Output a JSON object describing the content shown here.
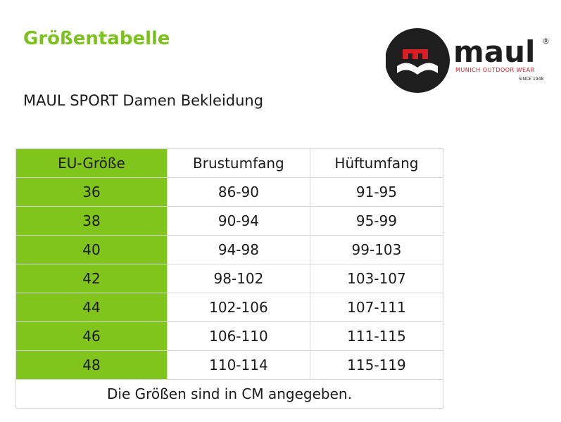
{
  "title": "Größentabelle",
  "subtitle": "MAUL SPORT Damen Bekleidung",
  "logo": {
    "wordmark": "maul",
    "registered": "®",
    "tagline": "MUNICH OUTDOOR WEAR",
    "since": "SINCE 1948",
    "colors": {
      "disc": "#1e1e1e",
      "accent": "#d91f26",
      "text": "#1e1e1e"
    }
  },
  "table": {
    "headers": [
      "EU-Größe",
      "Brustumfang",
      "Hüftumfang"
    ],
    "rows": [
      [
        "36",
        "86-90",
        "91-95"
      ],
      [
        "38",
        "90-94",
        "95-99"
      ],
      [
        "40",
        "94-98",
        "99-103"
      ],
      [
        "42",
        "98-102",
        "103-107"
      ],
      [
        "44",
        "102-106",
        "107-111"
      ],
      [
        "46",
        "106-110",
        "111-115"
      ],
      [
        "48",
        "110-114",
        "115-119"
      ]
    ],
    "note": "Die Größen sind in CM angegeben."
  },
  "colors": {
    "title_green": "#7dc11d",
    "column_green": "#80c41c",
    "grid": "#d6d6d6"
  }
}
